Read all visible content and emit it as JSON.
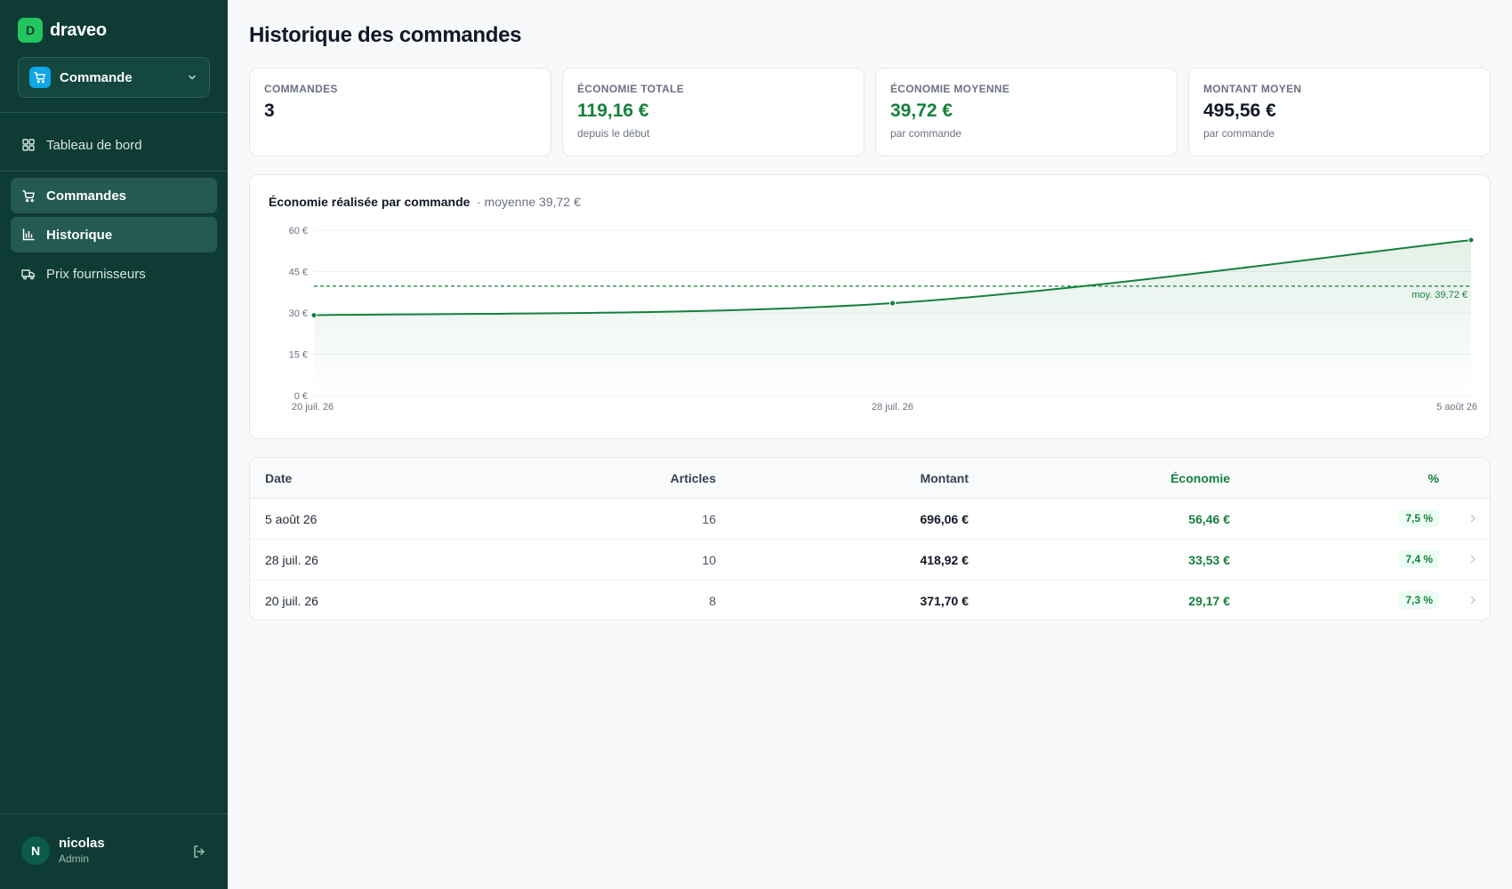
{
  "sidebar": {
    "brand": {
      "logo_letter": "D",
      "name": "draveo"
    },
    "switcher": {
      "label": "Commande",
      "icon": "cart-icon"
    },
    "nav": [
      {
        "label": "Tableau de bord",
        "icon": "dashboard-icon",
        "active": false
      },
      {
        "label": "Commandes",
        "icon": "cart-icon",
        "active": true
      },
      {
        "label": "Historique",
        "icon": "bar-chart-icon",
        "active": true
      },
      {
        "label": "Prix fournisseurs",
        "icon": "truck-icon",
        "active": false
      }
    ],
    "user": {
      "initial": "N",
      "name": "nicolas",
      "role": "Admin"
    }
  },
  "page": {
    "title": "Historique des commandes"
  },
  "stats": [
    {
      "label": "COMMANDES",
      "value": "3",
      "sub": ""
    },
    {
      "label": "ÉCONOMIE TOTALE",
      "value": "119,16 €",
      "sub": "depuis le début"
    },
    {
      "label": "ÉCONOMIE MOYENNE",
      "value": "39,72 €",
      "sub": "par commande"
    },
    {
      "label": "MONTANT MOYEN",
      "value": "495,56 €",
      "sub": "par commande"
    }
  ],
  "chart": {
    "title": "Économie réalisée par commande",
    "subtitle": "· moyenne 39,72 €",
    "avg_label": "moy. 39,72 €"
  },
  "chart_data": {
    "type": "area",
    "x": [
      "20 juil. 26",
      "28 juil. 26",
      "5 août 26"
    ],
    "values": [
      29.17,
      33.53,
      56.46
    ],
    "ylim": [
      0,
      60
    ],
    "yticks": [
      "0 €",
      "15 €",
      "30 €",
      "45 €",
      "60 €"
    ],
    "average": 39.72,
    "colors": {
      "line": "#15803d",
      "grid": "#eef0f2"
    },
    "grid": true
  },
  "table": {
    "headers": {
      "date": "Date",
      "articles": "Articles",
      "montant": "Montant",
      "economie": "Économie",
      "pct": "%"
    },
    "rows": [
      {
        "date": "5 août 26",
        "articles": "16",
        "montant": "696,06 €",
        "economie": "56,46 €",
        "pct": "7,5 %"
      },
      {
        "date": "28 juil. 26",
        "articles": "10",
        "montant": "418,92 €",
        "economie": "33,53 €",
        "pct": "7,4 %"
      },
      {
        "date": "20 juil. 26",
        "articles": "8",
        "montant": "371,70 €",
        "economie": "29,17 €",
        "pct": "7,3 %"
      }
    ]
  },
  "colors": {
    "sidebar_bg": "#0f3b35",
    "accent_green": "#15803d",
    "brand_green": "#22c55e",
    "switcher_blue": "#0ea5e9"
  }
}
